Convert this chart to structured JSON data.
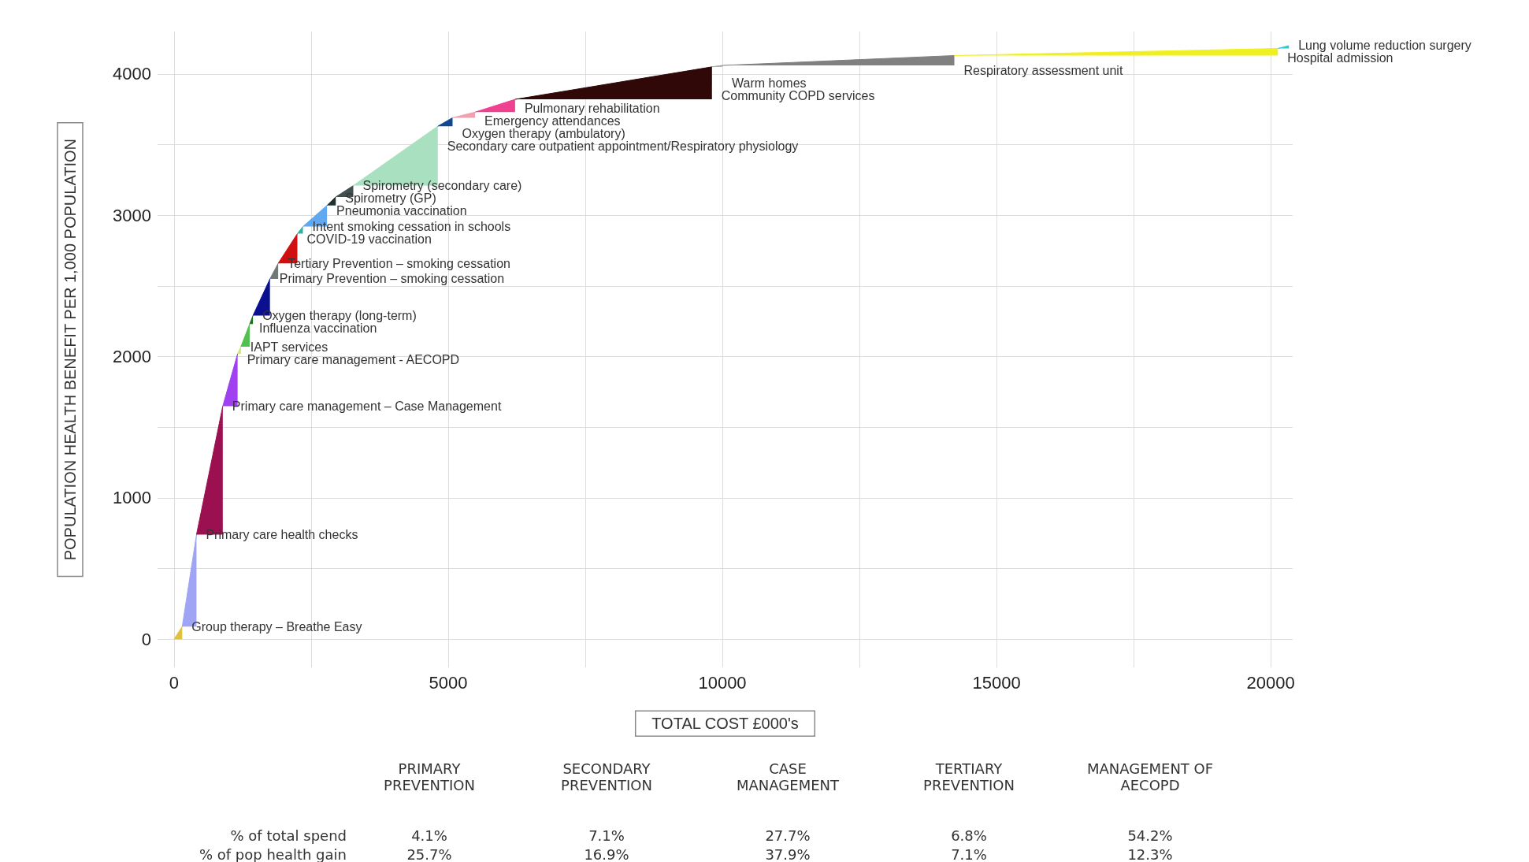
{
  "chart_data": {
    "type": "area",
    "xlabel": "TOTAL COST £000's",
    "ylabel": "POPULATION HEALTH BENEFIT PER 1,000 POPULATION",
    "xlim": [
      -300,
      20400
    ],
    "ylim": [
      -200,
      4300
    ],
    "xticks": [
      0,
      {
        "value": 2500,
        "label": null
      },
      5000,
      {
        "value": 7500,
        "label": null
      },
      10000,
      {
        "value": 12500,
        "label": null
      },
      15000,
      {
        "value": 17500,
        "label": null
      },
      20000
    ],
    "yticks": [
      0,
      {
        "value": 500,
        "label": null
      },
      1000,
      {
        "value": 1500,
        "label": null
      },
      2000,
      {
        "value": 2500,
        "label": null
      },
      3000,
      {
        "value": 3500,
        "label": null
      },
      4000
    ],
    "grid": true,
    "legend": false,
    "series": [
      {
        "name": "Group therapy – Breathe Easy",
        "color": "#e0c040",
        "x": [
          0,
          150
        ],
        "values": [
          0,
          90
        ]
      },
      {
        "name": "Primary care health checks",
        "color": "#a0a4f4",
        "x": [
          150,
          410
        ],
        "values": [
          90,
          740
        ]
      },
      {
        "name": "Primary care management – Case Management",
        "color": "#9b1050",
        "x": [
          410,
          890
        ],
        "values": [
          740,
          1650
        ]
      },
      {
        "name": "Primary care management - AECOPD",
        "color": "#a040f0",
        "x": [
          890,
          1160
        ],
        "values": [
          1650,
          2020
        ]
      },
      {
        "name": "IAPT services",
        "color": "#c8e870",
        "x": [
          1160,
          1220
        ],
        "values": [
          2020,
          2070
        ]
      },
      {
        "name": "Influenza vaccination",
        "color": "#50c050",
        "x": [
          1220,
          1380
        ],
        "values": [
          2070,
          2230
        ]
      },
      {
        "name": "Oxygen therapy (long-term)",
        "color": "#207020",
        "x": [
          1380,
          1440
        ],
        "values": [
          2230,
          2290
        ]
      },
      {
        "name": "Primary Prevention – smoking cessation",
        "color": "#0a1090",
        "x": [
          1440,
          1750
        ],
        "values": [
          2290,
          2550
        ]
      },
      {
        "name": "Tertiary Prevention – smoking cessation",
        "color": "#707878",
        "x": [
          1750,
          1900
        ],
        "values": [
          2550,
          2660
        ]
      },
      {
        "name": "COVID-19 vaccination",
        "color": "#d01010",
        "x": [
          1900,
          2250
        ],
        "values": [
          2660,
          2870
        ]
      },
      {
        "name": "Intent smoking cessation in schools",
        "color": "#30b0a0",
        "x": [
          2250,
          2350
        ],
        "values": [
          2870,
          2920
        ]
      },
      {
        "name": "Pneumonia vaccination",
        "color": "#60a8f0",
        "x": [
          2350,
          2790
        ],
        "values": [
          2920,
          3070
        ]
      },
      {
        "name": "Spirometry (GP)",
        "color": "#203030",
        "x": [
          2790,
          2950
        ],
        "values": [
          3070,
          3130
        ]
      },
      {
        "name": "Spirometry (secondary care)",
        "color": "#405050",
        "x": [
          2950,
          3270
        ],
        "values": [
          3130,
          3210
        ]
      },
      {
        "name": "Secondary care outpatient appointment/Respiratory physiology",
        "color": "#a8e0c0",
        "x": [
          3270,
          4810
        ],
        "values": [
          3210,
          3630
        ]
      },
      {
        "name": "Oxygen therapy (ambulatory)",
        "color": "#104890",
        "x": [
          4810,
          5080
        ],
        "values": [
          3630,
          3690
        ]
      },
      {
        "name": "Emergency attendances",
        "color": "#f0a0b0",
        "x": [
          5080,
          5490
        ],
        "values": [
          3690,
          3730
        ]
      },
      {
        "name": "Pulmonary rehabilitation",
        "color": "#f04090",
        "x": [
          5490,
          6220
        ],
        "values": [
          3730,
          3820
        ]
      },
      {
        "name": "Community COPD services",
        "color": "#300808",
        "x": [
          6220,
          9810
        ],
        "values": [
          3820,
          4050
        ]
      },
      {
        "name": "Warm homes",
        "color": "#a0a0a0",
        "x": [
          9810,
          10000
        ],
        "values": [
          4050,
          4060
        ]
      },
      {
        "name": "Respiratory assessment unit",
        "color": "#808080",
        "x": [
          10000,
          14230
        ],
        "values": [
          4060,
          4130
        ]
      },
      {
        "name": "Hospital admission",
        "color": "#f0f020",
        "x": [
          14230,
          20130
        ],
        "values": [
          4130,
          4180
        ]
      },
      {
        "name": "Lung volume reduction surgery",
        "color": "#30c8d0",
        "x": [
          20130,
          20330
        ],
        "values": [
          4180,
          4200
        ]
      }
    ],
    "annotations": [
      "% of total spend",
      "% of pop health gain",
      "PRIMARY PREVENTION",
      "SECONDARY PREVENTION",
      "CASE MANAGEMENT",
      "TERTIARY PREVENTION",
      "MANAGEMENT OF AECOPD",
      "4.1%",
      "7.1%",
      "27.7%",
      "6.8%",
      "54.2%",
      "25.7%",
      "16.9%",
      "37.9%",
      "7.1%",
      "12.3%"
    ]
  }
}
